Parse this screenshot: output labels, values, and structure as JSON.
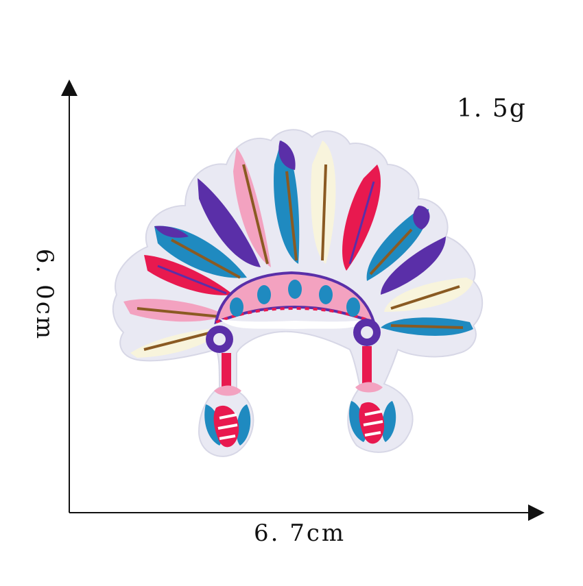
{
  "weight": "1. 5g",
  "dimensions": {
    "width": "6. 7cm",
    "height": "6. 0cm"
  },
  "product": {
    "subject": "embroidered feather headdress patch",
    "colors": {
      "backing": "#e9e9f3",
      "purple": "#5a2fa8",
      "blue": "#1f8ac0",
      "pink": "#f3a2c0",
      "red": "#e8194f",
      "cream": "#f8f4dc",
      "brown": "#8a5a22"
    }
  }
}
